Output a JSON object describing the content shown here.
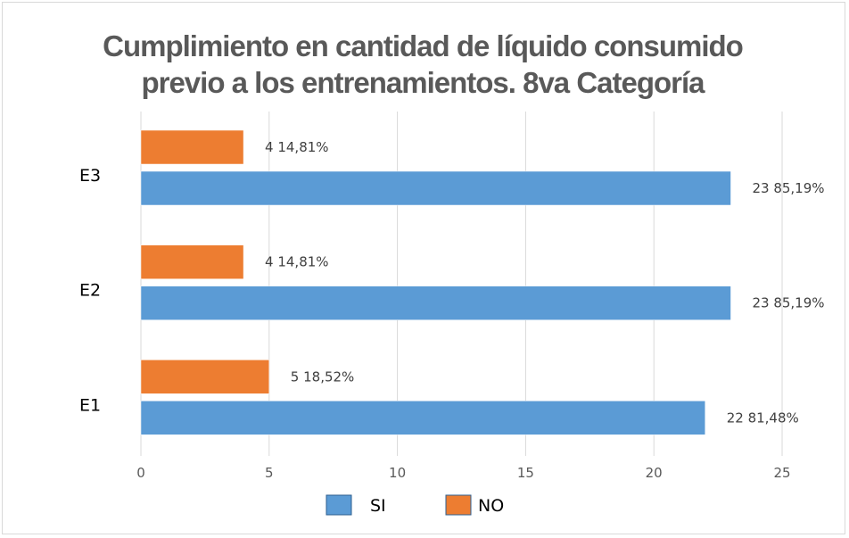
{
  "chart_data": {
    "type": "bar",
    "orientation": "horizontal",
    "title_lines": [
      "Cumplimiento en cantidad de líquido consumido",
      "previo a los entrenamientos. 8va Categoría"
    ],
    "categories": [
      "E1",
      "E2",
      "E3"
    ],
    "series": [
      {
        "name": "SI",
        "color": "#5b9bd5",
        "values": [
          22,
          23,
          23
        ],
        "labels": [
          "22 81,48%",
          "23 85,19%",
          "23 85,19%"
        ]
      },
      {
        "name": "NO",
        "color": "#ed7d31",
        "values": [
          5,
          4,
          4
        ],
        "labels": [
          "5 18,52%",
          "4 14,81%",
          "4 14,81%"
        ]
      }
    ],
    "xlim": [
      0,
      25
    ],
    "xticks": [
      0,
      5,
      10,
      15,
      20,
      25
    ],
    "grid": true,
    "legend_position": "bottom"
  }
}
